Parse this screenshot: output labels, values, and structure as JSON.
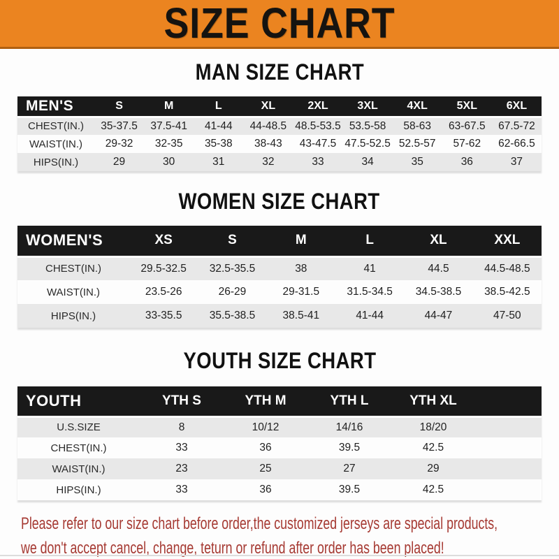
{
  "banner": {
    "title": "SIZE CHART"
  },
  "colors": {
    "banner_orange": "#EB8420",
    "header_black": "#191919",
    "row_gray": "#E8E8E8",
    "note_red": "#A63A33"
  },
  "men": {
    "heading": "MAN SIZE CHART",
    "table": {
      "header": [
        "MEN'S",
        "S",
        "M",
        "L",
        "XL",
        "2XL",
        "3XL",
        "4XL",
        "5XL",
        "6XL"
      ],
      "rows": [
        [
          "CHEST(IN.)",
          "35-37.5",
          "37.5-41",
          "41-44",
          "44-48.5",
          "48.5-53.5",
          "53.5-58",
          "58-63",
          "63-67.5",
          "67.5-72"
        ],
        [
          "WAIST(IN.)",
          "29-32",
          "32-35",
          "35-38",
          "38-43",
          "43-47.5",
          "47.5-52.5",
          "52.5-57",
          "57-62",
          "62-66.5"
        ],
        [
          "HIPS(IN.)",
          "29",
          "30",
          "31",
          "32",
          "33",
          "34",
          "35",
          "36",
          "37"
        ]
      ]
    }
  },
  "women": {
    "heading": "WOMEN SIZE CHART",
    "table": {
      "header": [
        "WOMEN'S",
        "XS",
        "S",
        "M",
        "L",
        "XL",
        "XXL"
      ],
      "rows": [
        [
          "CHEST(IN.)",
          "29.5-32.5",
          "32.5-35.5",
          "38",
          "41",
          "44.5",
          "44.5-48.5"
        ],
        [
          "WAIST(IN.)",
          "23.5-26",
          "26-29",
          "29-31.5",
          "31.5-34.5",
          "34.5-38.5",
          "38.5-42.5"
        ],
        [
          "HIPS(IN.)",
          "33-35.5",
          "35.5-38.5",
          "38.5-41",
          "41-44",
          "44-47",
          "47-50"
        ]
      ]
    }
  },
  "youth": {
    "heading": "YOUTH SIZE CHART",
    "table": {
      "header": [
        "YOUTH",
        "YTH S",
        "YTH M",
        "YTH L",
        "YTH XL",
        ""
      ],
      "rows": [
        [
          "U.S.SIZE",
          "8",
          "10/12",
          "14/16",
          "18/20",
          ""
        ],
        [
          "CHEST(IN.)",
          "33",
          "36",
          "39.5",
          "42.5",
          ""
        ],
        [
          "WAIST(IN.)",
          "23",
          "25",
          "27",
          "29",
          ""
        ],
        [
          "HIPS(IN.)",
          "33",
          "36",
          "39.5",
          "42.5",
          ""
        ]
      ]
    }
  },
  "note": {
    "line1": "Please refer to our size chart before order,the customized jerseys are special products,",
    "line2": "we don't accept cancel, change, teturn or refund after order has been placed!"
  }
}
